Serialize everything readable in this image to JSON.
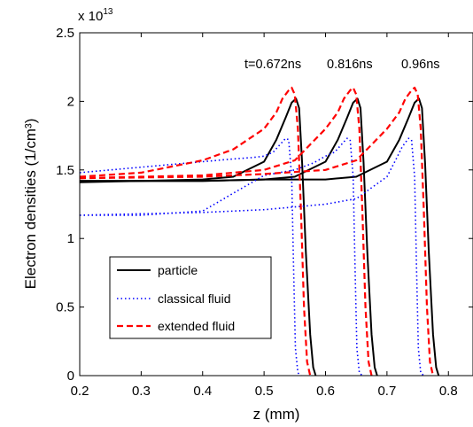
{
  "chart_data": {
    "type": "line",
    "xlabel": "z (mm)",
    "ylabel": "Electron densities (1/cm³)",
    "y_multiplier": "x 10",
    "y_multiplier_exp": "13",
    "xlim": [
      0.2,
      0.84
    ],
    "ylim": [
      0,
      2.5
    ],
    "xticks": [
      "0.2",
      "0.3",
      "0.4",
      "0.5",
      "0.6",
      "0.7",
      "0.8"
    ],
    "yticks": [
      "0",
      "0.5",
      "1",
      "1.5",
      "2",
      "2.5"
    ],
    "grid": false,
    "legend_position": "lower-left",
    "annotations": [
      "t=0.672ns",
      "0.816ns",
      "0.96ns"
    ],
    "series": [
      {
        "name": "particle",
        "color": "#000000",
        "style": "solid",
        "curves": [
          {
            "x": [
              0.2,
              0.3,
              0.4,
              0.45,
              0.5,
              0.52,
              0.535,
              0.545,
              0.552,
              0.557,
              0.562,
              0.568,
              0.575,
              0.58,
              0.584
            ],
            "y": [
              1.42,
              1.42,
              1.43,
              1.45,
              1.56,
              1.72,
              1.88,
              1.99,
              2.02,
              1.95,
              1.55,
              0.9,
              0.3,
              0.06,
              0.0
            ]
          },
          {
            "x": [
              0.2,
              0.3,
              0.4,
              0.5,
              0.55,
              0.6,
              0.62,
              0.635,
              0.645,
              0.652,
              0.657,
              0.662,
              0.668,
              0.675,
              0.68,
              0.684
            ],
            "y": [
              1.41,
              1.42,
              1.42,
              1.43,
              1.45,
              1.56,
              1.72,
              1.88,
              1.99,
              2.02,
              1.95,
              1.55,
              0.9,
              0.3,
              0.06,
              0.0
            ]
          },
          {
            "x": [
              0.2,
              0.4,
              0.5,
              0.6,
              0.65,
              0.7,
              0.72,
              0.735,
              0.745,
              0.752,
              0.757,
              0.762,
              0.768,
              0.775,
              0.78,
              0.784
            ],
            "y": [
              1.42,
              1.42,
              1.43,
              1.43,
              1.45,
              1.56,
              1.72,
              1.88,
              1.99,
              2.02,
              1.95,
              1.55,
              0.9,
              0.3,
              0.06,
              0.0
            ]
          }
        ]
      },
      {
        "name": "classical fluid",
        "color": "#0000ff",
        "style": "dotted",
        "curves": [
          {
            "x": [
              0.2,
              0.25,
              0.3,
              0.35,
              0.4,
              0.45,
              0.48,
              0.5,
              0.515,
              0.525,
              0.535,
              0.54,
              0.545,
              0.548,
              0.551,
              0.555,
              0.56
            ],
            "y": [
              1.48,
              1.5,
              1.52,
              1.54,
              1.56,
              1.58,
              1.59,
              1.6,
              1.63,
              1.68,
              1.73,
              1.72,
              1.45,
              0.8,
              0.2,
              0.02,
              0.0
            ]
          },
          {
            "x": [
              0.2,
              0.3,
              0.4,
              0.5,
              0.55,
              0.58,
              0.6,
              0.615,
              0.625,
              0.635,
              0.64,
              0.645,
              0.648,
              0.651,
              0.655,
              0.66
            ],
            "y": [
              1.17,
              1.17,
              1.2,
              1.46,
              1.5,
              1.55,
              1.6,
              1.63,
              1.68,
              1.73,
              1.72,
              1.45,
              0.8,
              0.2,
              0.02,
              0.0
            ]
          },
          {
            "x": [
              0.2,
              0.3,
              0.4,
              0.5,
              0.6,
              0.65,
              0.7,
              0.715,
              0.725,
              0.735,
              0.74,
              0.745,
              0.748,
              0.751,
              0.755,
              0.76
            ],
            "y": [
              1.17,
              1.18,
              1.19,
              1.21,
              1.25,
              1.29,
              1.45,
              1.58,
              1.67,
              1.73,
              1.72,
              1.45,
              0.8,
              0.2,
              0.02,
              0.0
            ]
          }
        ]
      },
      {
        "name": "extended fluid",
        "color": "#ff0000",
        "style": "dashed",
        "curves": [
          {
            "x": [
              0.2,
              0.3,
              0.4,
              0.45,
              0.5,
              0.52,
              0.53,
              0.54,
              0.545,
              0.55,
              0.555,
              0.56,
              0.565,
              0.57,
              0.575
            ],
            "y": [
              1.45,
              1.48,
              1.57,
              1.65,
              1.8,
              1.92,
              2.02,
              2.08,
              2.1,
              2.05,
              1.8,
              1.2,
              0.5,
              0.1,
              0.0
            ]
          },
          {
            "x": [
              0.2,
              0.3,
              0.4,
              0.5,
              0.55,
              0.6,
              0.62,
              0.63,
              0.64,
              0.645,
              0.65,
              0.655,
              0.66,
              0.665,
              0.67,
              0.675
            ],
            "y": [
              1.44,
              1.45,
              1.46,
              1.5,
              1.57,
              1.8,
              1.92,
              2.02,
              2.08,
              2.1,
              2.05,
              1.8,
              1.2,
              0.5,
              0.1,
              0.0
            ]
          },
          {
            "x": [
              0.2,
              0.4,
              0.5,
              0.6,
              0.65,
              0.7,
              0.72,
              0.73,
              0.74,
              0.745,
              0.75,
              0.755,
              0.76,
              0.765,
              0.77,
              0.775
            ],
            "y": [
              1.44,
              1.45,
              1.47,
              1.5,
              1.57,
              1.8,
              1.92,
              2.02,
              2.08,
              2.1,
              2.05,
              1.8,
              1.2,
              0.5,
              0.1,
              0.0
            ]
          }
        ]
      }
    ]
  }
}
